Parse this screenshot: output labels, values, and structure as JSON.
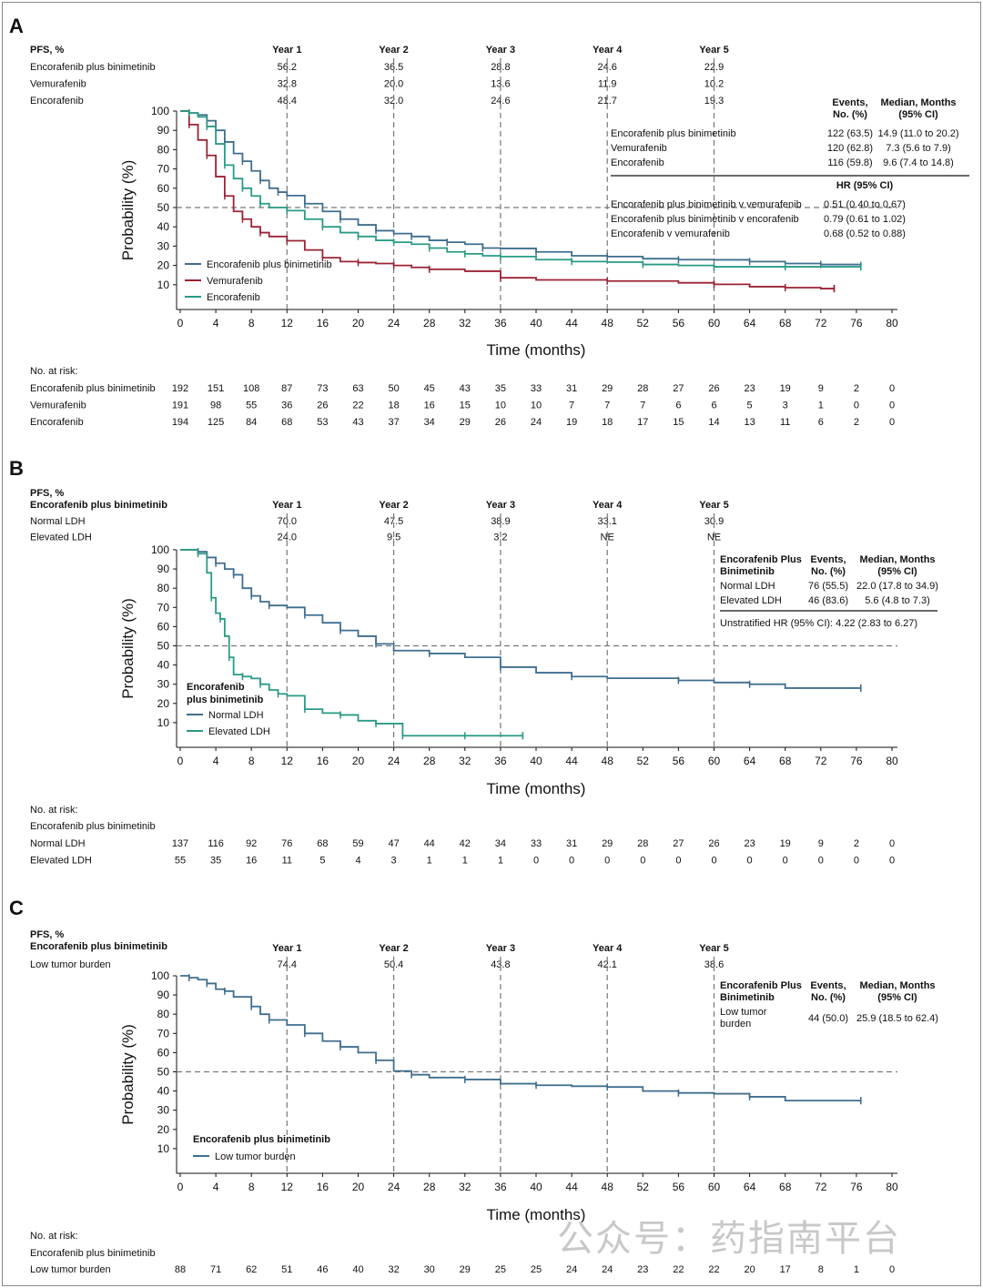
{
  "chart_data": [
    {
      "type": "line",
      "panel_label": "A",
      "stat_label": "PFS, %",
      "stat_subtitle": "",
      "xlabel": "Time (months)",
      "ylabel": "Probability (%)",
      "xlim": [
        0,
        80
      ],
      "ylim": [
        0,
        100
      ],
      "xticks": [
        0,
        4,
        8,
        12,
        16,
        20,
        24,
        28,
        32,
        36,
        40,
        44,
        48,
        52,
        56,
        60,
        64,
        68,
        72,
        76,
        80
      ],
      "yticks": [
        10,
        20,
        30,
        40,
        50,
        60,
        70,
        80,
        90,
        100
      ],
      "milestones": [
        "Year 1",
        "Year 2",
        "Year 3",
        "Year 4",
        "Year 5"
      ],
      "milestone_x": [
        12,
        24,
        36,
        48,
        60
      ],
      "milestone_rows": [
        {
          "label": "Encorafenib plus binimetinib",
          "values": [
            "56.2",
            "36.5",
            "28.8",
            "24.6",
            "22.9"
          ]
        },
        {
          "label": "Vemurafenib",
          "values": [
            "32.8",
            "20.0",
            "13.6",
            "11.9",
            "10.2"
          ]
        },
        {
          "label": "Encorafenib",
          "values": [
            "48.4",
            "32.0",
            "24.6",
            "21.7",
            "19.3"
          ]
        }
      ],
      "stats_headers": [
        "Events, No. (%)",
        "Median, Months (95% CI)"
      ],
      "stats_group_header": "",
      "stats_rows": [
        {
          "label": "Encorafenib plus binimetinib",
          "events": "122 (63.5)",
          "median": "14.9 (11.0 to 20.2)"
        },
        {
          "label": "Vemurafenib",
          "events": "120 (62.8)",
          "median": "7.3 (5.6 to 7.9)"
        },
        {
          "label": "Encorafenib",
          "events": "116 (59.8)",
          "median": "9.6 (7.4 to 14.8)"
        }
      ],
      "hr_header": "HR (95% CI)",
      "hr_rows": [
        {
          "label": "Encorafenib plus binimetinib v vemurafenib",
          "value": "0.51 (0.40 to 0.67)"
        },
        {
          "label": "Encorafenib plus binimetinib v encorafenib",
          "value": "0.79 (0.61 to 1.02)"
        },
        {
          "label": "Encorafenib v vemurafenib",
          "value": "0.68 (0.52 to 0.88)"
        }
      ],
      "legend_title": "",
      "legend": [
        "Encorafenib plus binimetinib",
        "Vemurafenib",
        "Encorafenib"
      ],
      "series": [
        {
          "name": "Encorafenib plus binimetinib",
          "color": "#3f6e8f",
          "x": [
            0,
            1,
            2,
            3,
            4,
            5,
            6,
            7,
            8,
            9,
            10,
            11,
            12,
            14,
            16,
            18,
            20,
            22,
            24,
            26,
            28,
            30,
            32,
            34,
            36,
            40,
            44,
            48,
            52,
            56,
            60,
            64,
            68,
            72,
            76.5
          ],
          "y": [
            100,
            99,
            98,
            95,
            90,
            84,
            78,
            74,
            69,
            64,
            60,
            58,
            56.2,
            52,
            48,
            44,
            41,
            38,
            36.5,
            35,
            33,
            32,
            31,
            29,
            28.8,
            27,
            25,
            24.6,
            23.5,
            23,
            22.9,
            22,
            21,
            20.5,
            20
          ]
        },
        {
          "name": "Vemurafenib",
          "color": "#9b2335",
          "x": [
            0,
            1,
            2,
            3,
            4,
            5,
            6,
            7,
            8,
            9,
            10,
            12,
            14,
            16,
            18,
            20,
            22,
            24,
            26,
            28,
            32,
            36,
            40,
            48,
            56,
            60,
            64,
            68,
            72,
            73.5
          ],
          "y": [
            100,
            93,
            85,
            77,
            66,
            56,
            48,
            44,
            40,
            37,
            35,
            32.8,
            28,
            24,
            22,
            21.5,
            21,
            20,
            19,
            18,
            17,
            13.6,
            12.5,
            11.9,
            11,
            10.2,
            9,
            8.5,
            8,
            8
          ]
        },
        {
          "name": "Encorafenib",
          "color": "#2a9a86",
          "x": [
            0,
            1,
            2,
            3,
            4,
            5,
            6,
            7,
            8,
            9,
            10,
            12,
            14,
            16,
            18,
            20,
            22,
            24,
            26,
            28,
            30,
            32,
            34,
            36,
            40,
            44,
            48,
            52,
            56,
            60,
            64,
            68,
            72,
            76.5
          ],
          "y": [
            100,
            99,
            97,
            92,
            83,
            72,
            65,
            60,
            56,
            52,
            50,
            48.4,
            44,
            40,
            37,
            35,
            33,
            32,
            31,
            29,
            27,
            26,
            25,
            24.6,
            23,
            22,
            21.7,
            20.5,
            20,
            19.3,
            19.3,
            19.3,
            19.3,
            19.3
          ]
        }
      ],
      "risk_title": "No. at risk:",
      "risk_subtitle": "",
      "risk_rows": [
        {
          "label": "Encorafenib plus binimetinib",
          "values": [
            "192",
            "151",
            "108",
            "87",
            "73",
            "63",
            "50",
            "45",
            "43",
            "35",
            "33",
            "31",
            "29",
            "28",
            "27",
            "26",
            "23",
            "19",
            "9",
            "2",
            "0"
          ]
        },
        {
          "label": "Vemurafenib",
          "values": [
            "191",
            "98",
            "55",
            "36",
            "26",
            "22",
            "18",
            "16",
            "15",
            "10",
            "10",
            "7",
            "7",
            "7",
            "6",
            "6",
            "5",
            "3",
            "1",
            "0",
            "0"
          ]
        },
        {
          "label": "Encorafenib",
          "values": [
            "194",
            "125",
            "84",
            "68",
            "53",
            "43",
            "37",
            "34",
            "29",
            "26",
            "24",
            "19",
            "18",
            "17",
            "15",
            "14",
            "13",
            "11",
            "6",
            "2",
            "0"
          ]
        }
      ]
    },
    {
      "type": "line",
      "panel_label": "B",
      "stat_label": "PFS, %",
      "stat_subtitle": "Encorafenib plus binimetinib",
      "xlabel": "Time (months)",
      "ylabel": "Probability (%)",
      "xlim": [
        0,
        80
      ],
      "ylim": [
        0,
        100
      ],
      "xticks": [
        0,
        4,
        8,
        12,
        16,
        20,
        24,
        28,
        32,
        36,
        40,
        44,
        48,
        52,
        56,
        60,
        64,
        68,
        72,
        76,
        80
      ],
      "yticks": [
        10,
        20,
        30,
        40,
        50,
        60,
        70,
        80,
        90,
        100
      ],
      "milestones": [
        "Year 1",
        "Year 2",
        "Year 3",
        "Year 4",
        "Year 5"
      ],
      "milestone_x": [
        12,
        24,
        36,
        48,
        60
      ],
      "milestone_rows": [
        {
          "label": "Normal LDH",
          "values": [
            "70.0",
            "47.5",
            "38.9",
            "33.1",
            "30.9"
          ]
        },
        {
          "label": "Elevated LDH",
          "values": [
            "24.0",
            "9.5",
            "3.2",
            "NE",
            "NE"
          ]
        }
      ],
      "stats_headers": [
        "Events, No. (%)",
        "Median, Months (95% CI)"
      ],
      "stats_group_header": "Encorafenib Plus Binimetinib",
      "stats_rows": [
        {
          "label": "Normal LDH",
          "events": "76 (55.5)",
          "median": "22.0 (17.8 to 34.9)"
        },
        {
          "label": "Elevated LDH",
          "events": "46 (83.6)",
          "median": "5.6 (4.8 to 7.3)"
        }
      ],
      "hr_header": "",
      "hr_rows": [
        {
          "label": "Unstratified HR (95% CI): 4.22 (2.83 to 6.27)",
          "value": ""
        }
      ],
      "legend_title": "Encorafenib plus binimetinib",
      "legend": [
        "Normal LDH",
        "Elevated LDH"
      ],
      "series": [
        {
          "name": "Normal LDH",
          "color": "#3f6e8f",
          "x": [
            0,
            2,
            3,
            4,
            5,
            6,
            7,
            8,
            9,
            10,
            12,
            14,
            16,
            18,
            20,
            22,
            24,
            28,
            32,
            36,
            40,
            44,
            48,
            56,
            60,
            64,
            68,
            76.5
          ],
          "y": [
            100,
            99,
            96,
            93,
            90,
            87,
            80,
            76,
            73,
            71,
            70,
            66,
            62,
            58,
            55,
            51,
            47.5,
            46,
            44,
            38.9,
            36,
            34,
            33.1,
            32,
            30.9,
            30,
            28,
            28
          ]
        },
        {
          "name": "Elevated LDH",
          "color": "#2a9a86",
          "x": [
            0,
            2,
            3,
            3.5,
            4,
            4.5,
            5,
            5.5,
            6,
            7,
            8,
            9,
            10,
            11,
            12,
            14,
            16,
            18,
            20,
            22,
            24,
            25,
            28,
            32,
            36,
            38.5
          ],
          "y": [
            100,
            98,
            88,
            75,
            67,
            64,
            55,
            44,
            35,
            34,
            33,
            30,
            27,
            25,
            24,
            17,
            15,
            14,
            11,
            9.5,
            9.5,
            3.2,
            3.2,
            3.2,
            3.2,
            3.2
          ]
        }
      ],
      "risk_title": "No. at risk:",
      "risk_subtitle": "Encorafenib plus binimetinib",
      "risk_rows": [
        {
          "label": "Normal LDH",
          "values": [
            "137",
            "116",
            "92",
            "76",
            "68",
            "59",
            "47",
            "44",
            "42",
            "34",
            "33",
            "31",
            "29",
            "28",
            "27",
            "26",
            "23",
            "19",
            "9",
            "2",
            "0"
          ]
        },
        {
          "label": "Elevated LDH",
          "values": [
            "55",
            "35",
            "16",
            "11",
            "5",
            "4",
            "3",
            "1",
            "1",
            "1",
            "0",
            "0",
            "0",
            "0",
            "0",
            "0",
            "0",
            "0",
            "0",
            "0",
            "0"
          ]
        }
      ]
    },
    {
      "type": "line",
      "panel_label": "C",
      "stat_label": "PFS, %",
      "stat_subtitle": "Encorafenib plus binimetinib",
      "xlabel": "Time (months)",
      "ylabel": "Probability (%)",
      "xlim": [
        0,
        80
      ],
      "ylim": [
        0,
        100
      ],
      "xticks": [
        0,
        4,
        8,
        12,
        16,
        20,
        24,
        28,
        32,
        36,
        40,
        44,
        48,
        52,
        56,
        60,
        64,
        68,
        72,
        76,
        80
      ],
      "yticks": [
        10,
        20,
        30,
        40,
        50,
        60,
        70,
        80,
        90,
        100
      ],
      "milestones": [
        "Year 1",
        "Year 2",
        "Year 3",
        "Year 4",
        "Year 5"
      ],
      "milestone_x": [
        12,
        24,
        36,
        48,
        60
      ],
      "milestone_rows": [
        {
          "label": "Low tumor burden",
          "values": [
            "74.4",
            "50.4",
            "43.8",
            "42.1",
            "38.6"
          ]
        }
      ],
      "stats_headers": [
        "Events, No. (%)",
        "Median, Months (95% CI)"
      ],
      "stats_group_header": "Encorafenib Plus Binimetinib",
      "stats_rows": [
        {
          "label": "Low tumor burden",
          "events": "44 (50.0)",
          "median": "25.9 (18.5 to 62.4)"
        }
      ],
      "hr_header": "",
      "hr_rows": [],
      "legend_title": "Encorafenib plus binimetinib",
      "legend": [
        "Low tumor burden"
      ],
      "series": [
        {
          "name": "Low tumor burden",
          "color": "#3f6e8f",
          "x": [
            0,
            1,
            2,
            3,
            4,
            5,
            6,
            8,
            9,
            10,
            12,
            14,
            16,
            18,
            20,
            22,
            24,
            26,
            28,
            32,
            36,
            40,
            44,
            48,
            52,
            56,
            60,
            64,
            68,
            76.5
          ],
          "y": [
            100,
            99,
            98,
            96,
            93,
            92,
            89,
            84,
            80,
            77,
            74.4,
            70,
            66,
            63,
            60,
            56,
            50.4,
            48.5,
            47,
            46,
            43.8,
            43,
            42.5,
            42.1,
            40,
            39,
            38.6,
            37,
            35,
            35
          ]
        }
      ],
      "risk_title": "No. at risk:",
      "risk_subtitle": "Encorafenib plus binimetinib",
      "risk_rows": [
        {
          "label": "Low tumor burden",
          "values": [
            "88",
            "71",
            "62",
            "51",
            "46",
            "40",
            "32",
            "30",
            "29",
            "25",
            "25",
            "24",
            "24",
            "23",
            "22",
            "22",
            "20",
            "17",
            "8",
            "1",
            "0"
          ]
        }
      ]
    }
  ],
  "watermark": "公众号：药指南平台"
}
